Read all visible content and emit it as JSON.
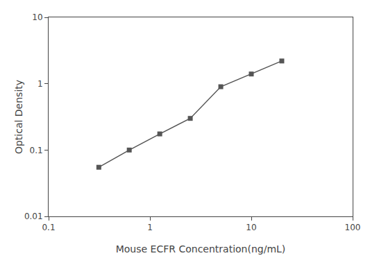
{
  "chart_data": {
    "type": "line",
    "x": [
      0.313,
      0.625,
      1.25,
      2.5,
      5.0,
      10.0,
      20.0
    ],
    "values": [
      0.055,
      0.1,
      0.175,
      0.3,
      0.9,
      1.4,
      2.2
    ],
    "xlabel": "Mouse ECFR Concentration(ng/mL)",
    "ylabel": "Optical Density",
    "xlim": [
      0.1,
      100
    ],
    "ylim": [
      0.01,
      10
    ],
    "xticks": [
      0.1,
      1,
      10,
      100
    ],
    "yticks": [
      0.01,
      0.1,
      1,
      10
    ],
    "log": true,
    "grid": false,
    "color": "#555555",
    "marker": "square"
  }
}
